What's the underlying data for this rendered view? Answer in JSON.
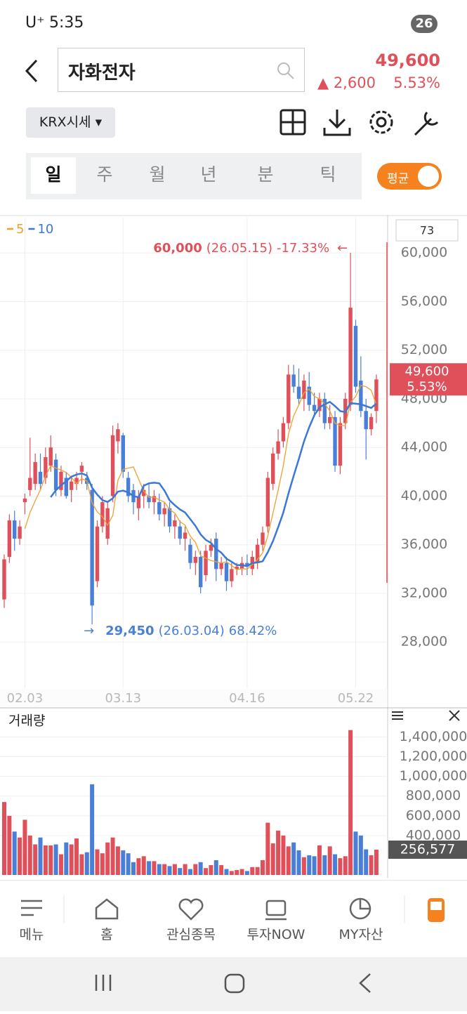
{
  "status_bar": {
    "carrier": "U⁺",
    "time": "5:35",
    "battery": "26"
  },
  "header": {
    "title": "자화전자",
    "price": "49,600",
    "change": "▲ 2,600",
    "change_pct": "5.53%"
  },
  "toolbar": {
    "market": "KRX시세"
  },
  "tabs": [
    "일",
    "주",
    "월",
    "년",
    "분",
    "틱"
  ],
  "toggle": "평균",
  "chart_data": {
    "type": "candlestick",
    "legend": [
      {
        "period": 5,
        "color": "#f0a030"
      },
      {
        "period": 10,
        "color": "#3a78d8"
      }
    ],
    "count_label": "73",
    "up_color": "#e0505a",
    "down_color": "#4a7fd8",
    "categories": [
      null,
      null,
      null,
      null,
      "02.03",
      null,
      null,
      null,
      null,
      null,
      null,
      null,
      null,
      null,
      null,
      null,
      null,
      null,
      null,
      null,
      null,
      null,
      null,
      "03.13",
      null,
      null,
      null,
      null,
      null,
      null,
      null,
      null,
      null,
      null,
      null,
      null,
      null,
      null,
      null,
      null,
      null,
      null,
      null,
      null,
      null,
      null,
      null,
      "04.16",
      null,
      null,
      null,
      null,
      null,
      null,
      null,
      null,
      null,
      null,
      null,
      null,
      null,
      null,
      null,
      null,
      null,
      null,
      null,
      null,
      "05.22",
      null,
      null,
      null,
      null
    ],
    "candles": [
      [
        31500,
        35200,
        30800,
        34800
      ],
      [
        35000,
        38500,
        34500,
        38000
      ],
      [
        38000,
        38800,
        35500,
        36500
      ],
      [
        36500,
        38000,
        36000,
        37500
      ],
      [
        39500,
        40200,
        38500,
        39800
      ],
      [
        40500,
        44800,
        40000,
        41500
      ],
      [
        41000,
        43500,
        40500,
        42800
      ],
      [
        42000,
        43500,
        40500,
        41000
      ],
      [
        41500,
        44000,
        41000,
        43200
      ],
      [
        42500,
        45000,
        42000,
        44000
      ],
      [
        43000,
        43500,
        40000,
        40500
      ],
      [
        40500,
        42500,
        40000,
        42000
      ],
      [
        41500,
        42000,
        39800,
        40000
      ],
      [
        40500,
        41500,
        39500,
        41200
      ],
      [
        41000,
        42000,
        40500,
        41500
      ],
      [
        42000,
        42800,
        41000,
        42500
      ],
      [
        41500,
        42000,
        40500,
        41000
      ],
      [
        40500,
        41000,
        29450,
        31000
      ],
      [
        33000,
        38000,
        32500,
        37500
      ],
      [
        37500,
        40000,
        37000,
        39500
      ],
      [
        36500,
        39500,
        36000,
        39000
      ],
      [
        40000,
        45800,
        39500,
        45000
      ],
      [
        44500,
        46000,
        43500,
        45500
      ],
      [
        45000,
        45200,
        41500,
        42000
      ],
      [
        41500,
        42000,
        39500,
        40000
      ],
      [
        40500,
        41000,
        38500,
        39500
      ],
      [
        39000,
        40500,
        38000,
        40000
      ],
      [
        40000,
        41000,
        39000,
        40500
      ],
      [
        40000,
        41000,
        39000,
        39500
      ],
      [
        39500,
        40500,
        38500,
        40000
      ],
      [
        39500,
        40200,
        38000,
        38500
      ],
      [
        38500,
        39500,
        37500,
        39000
      ],
      [
        39000,
        39500,
        37000,
        37500
      ],
      [
        37500,
        38500,
        36500,
        38000
      ],
      [
        37500,
        38000,
        36000,
        36500
      ],
      [
        36500,
        37500,
        35500,
        37000
      ],
      [
        36000,
        36500,
        34000,
        34500
      ],
      [
        34500,
        35500,
        33500,
        35000
      ],
      [
        35000,
        35500,
        32000,
        32500
      ],
      [
        33500,
        36000,
        33000,
        35500
      ],
      [
        35500,
        36500,
        35000,
        36000
      ],
      [
        36500,
        37000,
        33000,
        34000
      ],
      [
        34000,
        35000,
        33500,
        34500
      ],
      [
        34500,
        35000,
        32200,
        33000
      ],
      [
        33000,
        34500,
        32500,
        34000
      ],
      [
        34000,
        34500,
        33500,
        34200
      ],
      [
        34000,
        35000,
        33500,
        34500
      ],
      [
        34500,
        35200,
        33500,
        34200
      ],
      [
        34000,
        35500,
        33500,
        35000
      ],
      [
        34500,
        36500,
        34000,
        36000
      ],
      [
        36000,
        37500,
        35500,
        37000
      ],
      [
        37500,
        42000,
        37000,
        41500
      ],
      [
        41000,
        44000,
        40500,
        43500
      ],
      [
        43500,
        45500,
        43000,
        44500
      ],
      [
        44500,
        46500,
        44000,
        46000
      ],
      [
        46000,
        50800,
        45500,
        50000
      ],
      [
        50000,
        50800,
        48500,
        49000
      ],
      [
        49000,
        50500,
        47500,
        48000
      ],
      [
        48000,
        50000,
        47000,
        49500
      ],
      [
        49000,
        50200,
        47000,
        47500
      ],
      [
        47500,
        48500,
        46500,
        47000
      ],
      [
        47000,
        48500,
        46500,
        48000
      ],
      [
        48000,
        48500,
        45500,
        46000
      ],
      [
        46000,
        47500,
        45500,
        46500
      ],
      [
        46500,
        47000,
        42000,
        42500
      ],
      [
        42500,
        46500,
        41800,
        46000
      ],
      [
        46000,
        48500,
        45500,
        48000
      ],
      [
        47500,
        60000,
        47000,
        55500
      ],
      [
        54000,
        54500,
        48500,
        49000
      ],
      [
        49500,
        51500,
        46500,
        47000
      ],
      [
        47000,
        48000,
        43000,
        45500
      ],
      [
        45500,
        46800,
        45000,
        46500
      ],
      [
        47000,
        50000,
        46000,
        49600
      ]
    ],
    "ylim": [
      24200,
      62900
    ],
    "yticks": [
      {
        "value": 28000,
        "label": "28,000"
      },
      {
        "value": 32000,
        "label": "32,000"
      },
      {
        "value": 36000,
        "label": "36,000"
      },
      {
        "value": 40000,
        "label": "40,000"
      },
      {
        "value": 44000,
        "label": "44,000"
      },
      {
        "value": 48000,
        "label": "48,000"
      },
      {
        "value": 52000,
        "label": "52,000"
      },
      {
        "value": 56000,
        "label": "56,000"
      },
      {
        "value": 60000,
        "label": "60,000"
      }
    ],
    "grid": true,
    "high": {
      "value": 60000,
      "label": "60,000",
      "date": "(26.05.15)",
      "pct": "-17.33%"
    },
    "low": {
      "value": 29450,
      "label": "29,450",
      "date": "(26.03.04)",
      "pct": "68.42%"
    },
    "last": {
      "value": 49600,
      "label": "49,600",
      "change": "5.53%"
    },
    "volume": {
      "title": "거래량",
      "values": [
        740000,
        600000,
        440000,
        380000,
        560000,
        400000,
        310000,
        380000,
        300000,
        300000,
        310000,
        210000,
        330000,
        310000,
        370000,
        210000,
        230000,
        920000,
        260000,
        220000,
        330000,
        380000,
        290000,
        250000,
        220000,
        130000,
        170000,
        190000,
        140000,
        140000,
        110000,
        110000,
        90000,
        110000,
        70000,
        110000,
        60000,
        110000,
        130000,
        70000,
        100000,
        150000,
        100000,
        60000,
        40000,
        50000,
        60000,
        40000,
        80000,
        80000,
        150000,
        530000,
        320000,
        450000,
        400000,
        290000,
        330000,
        250000,
        180000,
        200000,
        190000,
        300000,
        200000,
        290000,
        210000,
        170000,
        190000,
        1470000,
        440000,
        400000,
        260000,
        200000,
        256577
      ],
      "ylim": [
        0,
        1610000
      ],
      "yticks": [
        {
          "value": 400000,
          "label": "400,000"
        },
        {
          "value": 600000,
          "label": "600,000"
        },
        {
          "value": 800000,
          "label": "800,000"
        },
        {
          "value": 1000000,
          "label": "1,000,000"
        },
        {
          "value": 1200000,
          "label": "1,200,000"
        },
        {
          "value": 1400000,
          "label": "1,400,000"
        }
      ],
      "last": {
        "value": 256577,
        "label": "256,577"
      }
    }
  },
  "nav": [
    "메뉴",
    "홈",
    "관심종목",
    "투자NOW",
    "MY자산"
  ]
}
